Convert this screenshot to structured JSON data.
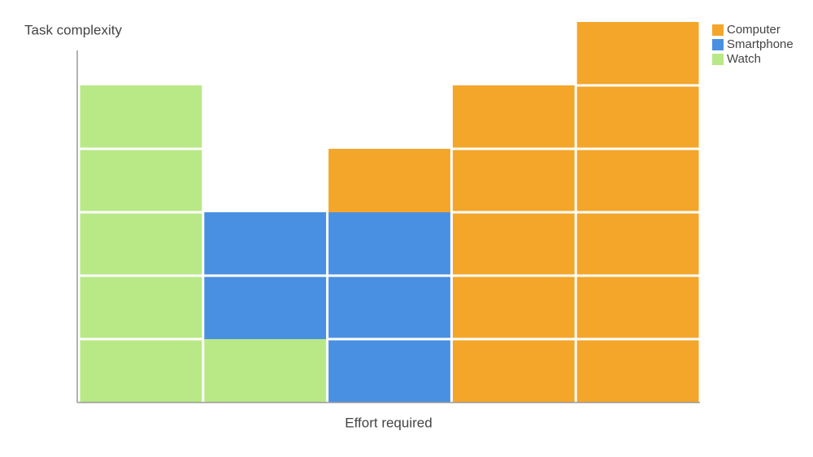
{
  "chart_data": {
    "type": "bar",
    "stacked": true,
    "y_label": "Task complexity",
    "x_label": "Effort required",
    "categories": [
      null,
      null,
      null,
      null,
      null
    ],
    "series": [
      {
        "name": "Computer",
        "color": "#f4a62a",
        "values": [
          0,
          0,
          1,
          5,
          6
        ]
      },
      {
        "name": "Smartphone",
        "color": "#4a90e2",
        "values": [
          0,
          2,
          3,
          0,
          0
        ]
      },
      {
        "name": "Watch",
        "color": "#b8e986",
        "values": [
          5,
          1,
          0,
          0,
          0
        ]
      }
    ],
    "ylim": [
      0,
      6
    ],
    "legend": "top-right"
  }
}
